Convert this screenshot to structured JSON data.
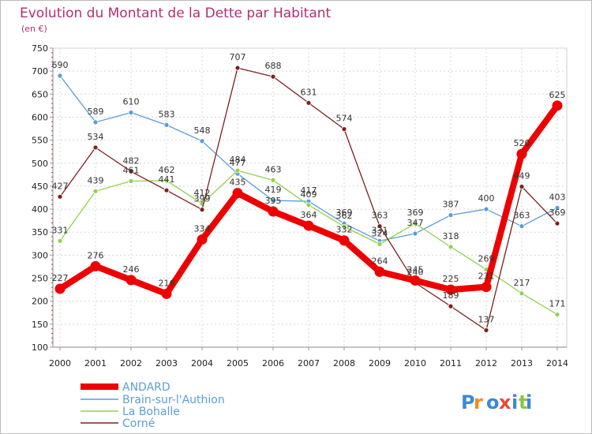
{
  "chart_data": {
    "type": "line",
    "title": "Evolution du Montant de la Dette par Habitant",
    "subtitle": "(en €)",
    "x": [
      "2000",
      "2001",
      "2002",
      "2003",
      "2004",
      "2005",
      "2006",
      "2007",
      "2008",
      "2009",
      "2010",
      "2011",
      "2012",
      "2013",
      "2014"
    ],
    "ylim": [
      100,
      750
    ],
    "yticks": [
      100,
      150,
      200,
      250,
      300,
      350,
      400,
      450,
      500,
      550,
      600,
      650,
      700,
      750
    ],
    "grid": true,
    "legend_position": "bottom-left",
    "series": [
      {
        "name": "Brain-sur-l'Authion",
        "color": "#5b9bd5",
        "values": [
          690,
          589,
          610,
          583,
          548,
          477,
          419,
          417,
          369,
          331,
          347,
          387,
          400,
          363,
          403
        ]
      },
      {
        "name": "La Bohalle",
        "color": "#92d050",
        "values": [
          331,
          439,
          461,
          462,
          412,
          484,
          463,
          409,
          362,
          324,
          369,
          318,
          269,
          217,
          171
        ]
      },
      {
        "name": "Corné",
        "color": "#7b2020",
        "values": [
          427,
          534,
          482,
          441,
          399,
          707,
          688,
          631,
          574,
          363,
          240,
          189,
          137,
          449,
          369
        ]
      },
      {
        "name": "ANDARD",
        "color": "#ee0000",
        "values": [
          227,
          276,
          246,
          216,
          334,
          435,
          395,
          364,
          332,
          264,
          245,
          225,
          231,
          520,
          625
        ]
      }
    ],
    "legend_order": [
      "ANDARD",
      "Brain-sur-l'Authion",
      "La Bohalle",
      "Corné"
    ]
  },
  "logo_text": "Proxiti"
}
